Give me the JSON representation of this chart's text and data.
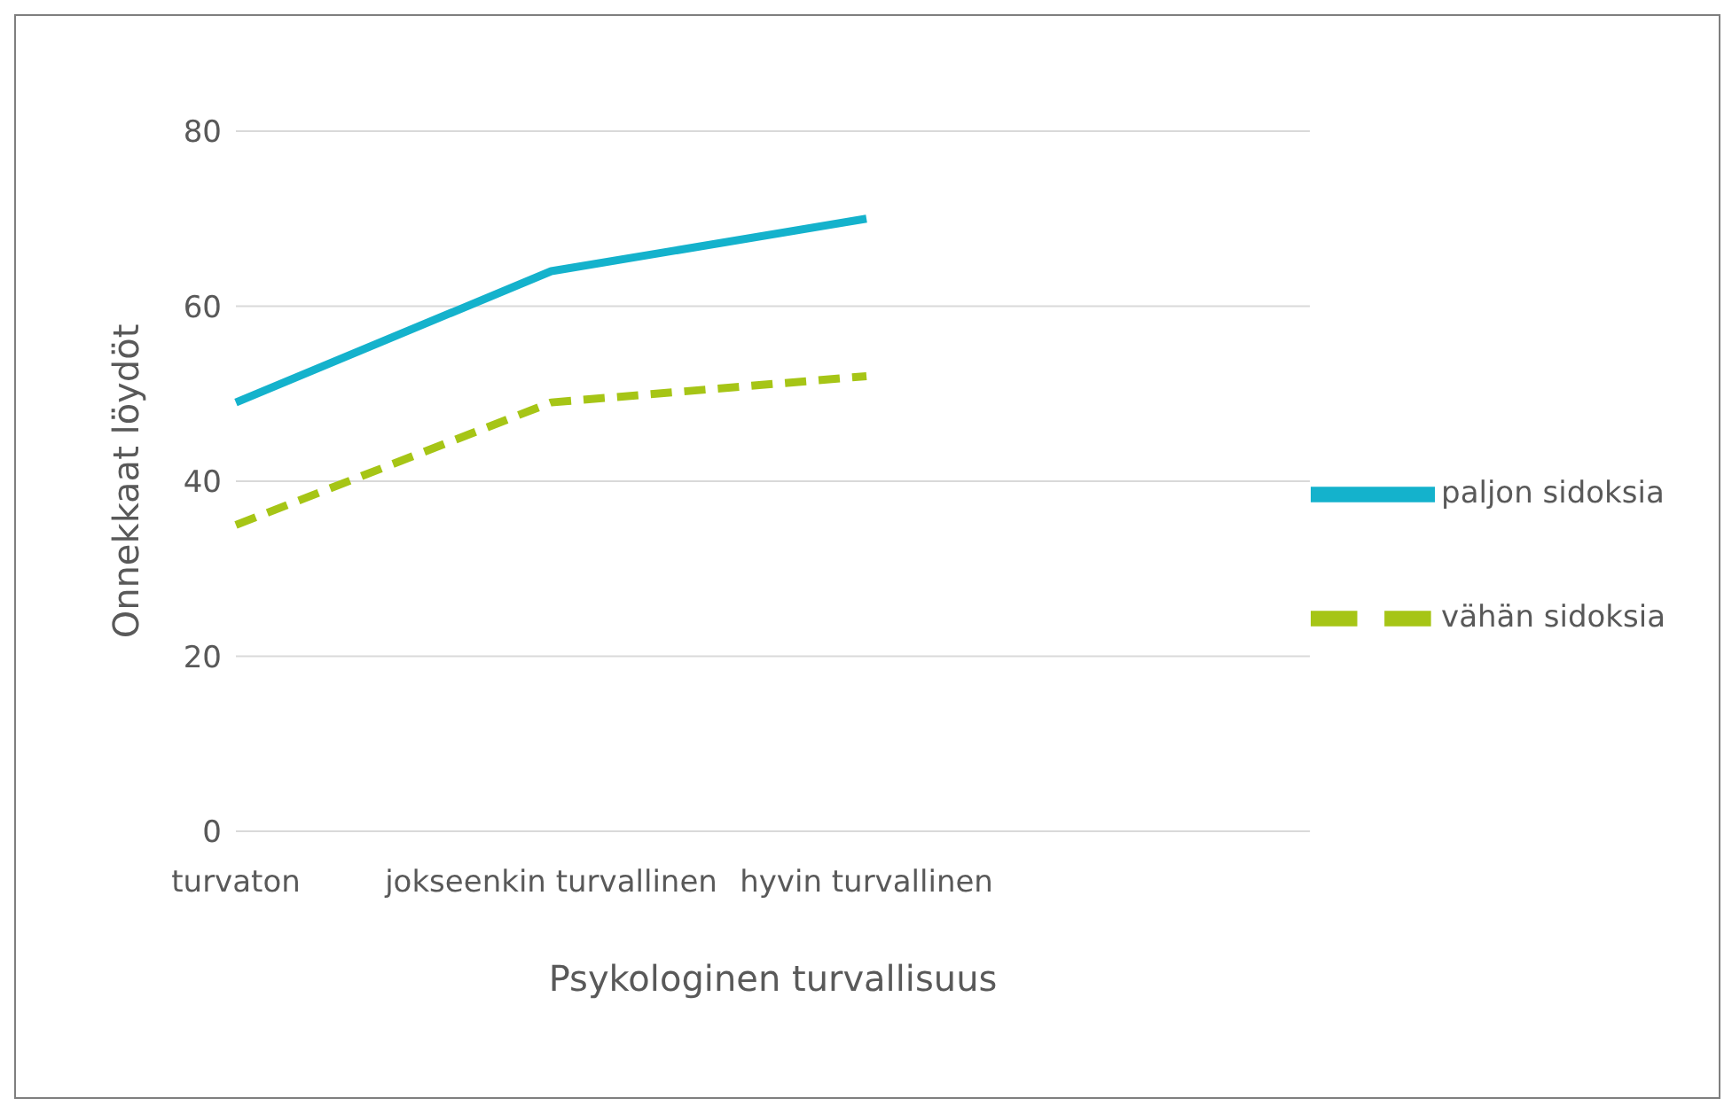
{
  "chart_data": {
    "type": "line",
    "xlabel": "Psykologinen turvallisuus",
    "ylabel": "Onnekkaat löydöt",
    "categories": [
      "turvaton",
      "jokseenkin turvallinen",
      "hyvin turvallinen"
    ],
    "series": [
      {
        "name": "vähän sidoksia",
        "color": "#a6c516",
        "values": [
          35,
          49,
          52
        ],
        "line_style": "dashed"
      },
      {
        "name": "paljon sidoksia",
        "color": "#14b2cc",
        "values": [
          49,
          64,
          70
        ],
        "line_style": "solid"
      }
    ],
    "ylim": [
      0,
      80
    ],
    "yticks": [
      0,
      20,
      40,
      60,
      80
    ],
    "grid": "y",
    "legend": "right",
    "marker": "none"
  }
}
